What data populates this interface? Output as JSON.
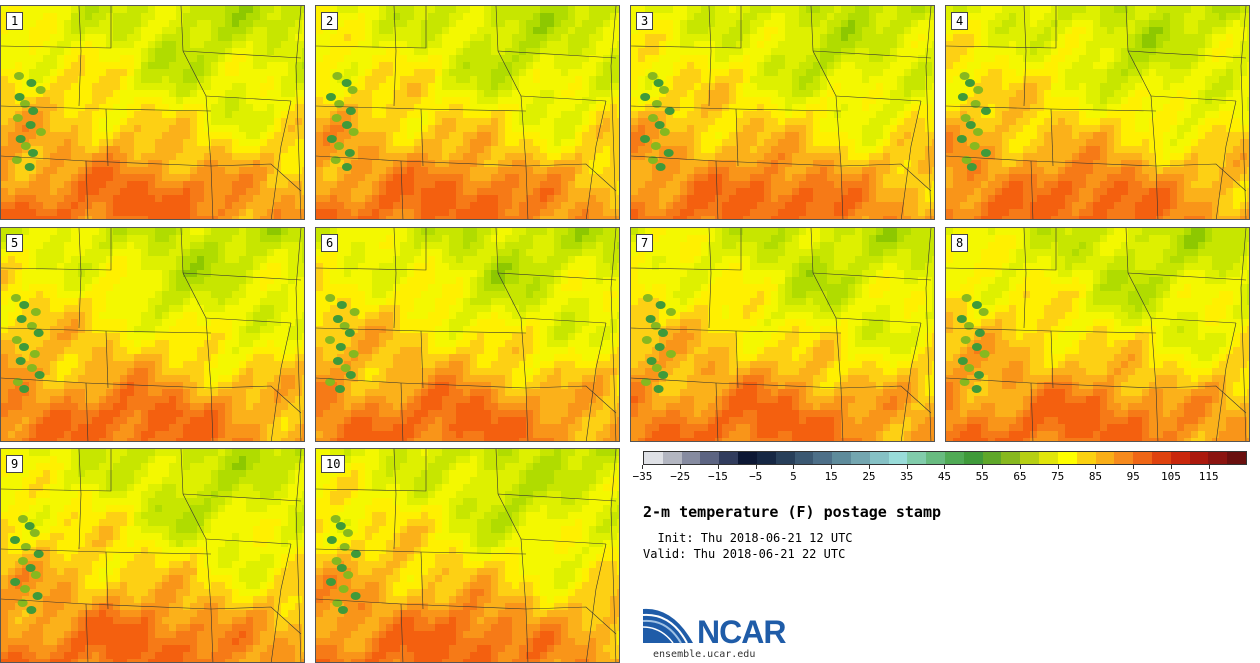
{
  "panels": [
    {
      "label": "1"
    },
    {
      "label": "2"
    },
    {
      "label": "3"
    },
    {
      "label": "4"
    },
    {
      "label": "5"
    },
    {
      "label": "6"
    },
    {
      "label": "7"
    },
    {
      "label": "8"
    },
    {
      "label": "9"
    },
    {
      "label": "10"
    }
  ],
  "colorbar": {
    "colors": [
      "#dfe1e6",
      "#b3b6c1",
      "#868ba0",
      "#5c6482",
      "#313c5d",
      "#0c1734",
      "#162744",
      "#283f5a",
      "#3b5872",
      "#4d6f88",
      "#5e8b9b",
      "#74a6b0",
      "#86c1c5",
      "#99dcd9",
      "#81ccab",
      "#68bb80",
      "#50aa55",
      "#3f9a3a",
      "#5fa72a",
      "#87b81f",
      "#b6cf14",
      "#e1e50b",
      "#ffff00",
      "#fbd111",
      "#f9ae18",
      "#f68a1d",
      "#ef6616",
      "#df420e",
      "#c9270c",
      "#ab190d",
      "#8b1410",
      "#6a100f"
    ],
    "ticks": [
      "−35",
      "−25",
      "−15",
      "−5",
      "5",
      "15",
      "25",
      "35",
      "45",
      "55",
      "65",
      "75",
      "85",
      "95",
      "105",
      "115"
    ]
  },
  "title": "2-m temperature (F) postage stamp",
  "init": "  Init: Thu 2018-06-21 12 UTC",
  "valid": "Valid: Thu 2018-06-21 22 UTC",
  "logo": {
    "text": "NCAR",
    "url": "ensemble.ucar.edu"
  }
}
